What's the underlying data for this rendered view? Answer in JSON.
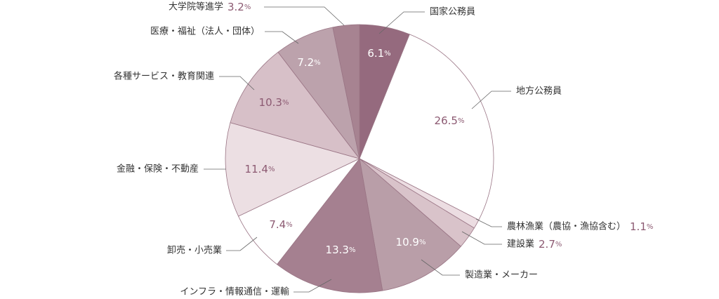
{
  "chart_data": {
    "type": "pie",
    "categories": [
      "国家公務員",
      "地方公務員",
      "農林漁業（農協・漁協含む）",
      "建設業",
      "製造業・メーカー",
      "インフラ・情報通信・運輸",
      "卸売・小売業",
      "金融・保険・不動産",
      "各種サービス・教育関連",
      "医療・福祉（法人・団体）",
      "大学院等進学"
    ],
    "values": [
      6.1,
      26.5,
      1.1,
      2.7,
      10.9,
      13.3,
      7.4,
      11.4,
      10.3,
      7.2,
      3.2
    ],
    "value_labels": [
      "6.1%",
      "26.5%",
      "1.1%",
      "2.7%",
      "10.9%",
      "13.3%",
      "7.4%",
      "11.4%",
      "10.3%",
      "7.2%",
      "3.2%"
    ],
    "colors": [
      "#956a7e",
      "#ffffff",
      "#ecdde2",
      "#d9c3ca",
      "#b99ea8",
      "#a58090",
      "#ffffff",
      "#ecdfe3",
      "#d7c0c8",
      "#bca2ac",
      "#a78391"
    ]
  }
}
